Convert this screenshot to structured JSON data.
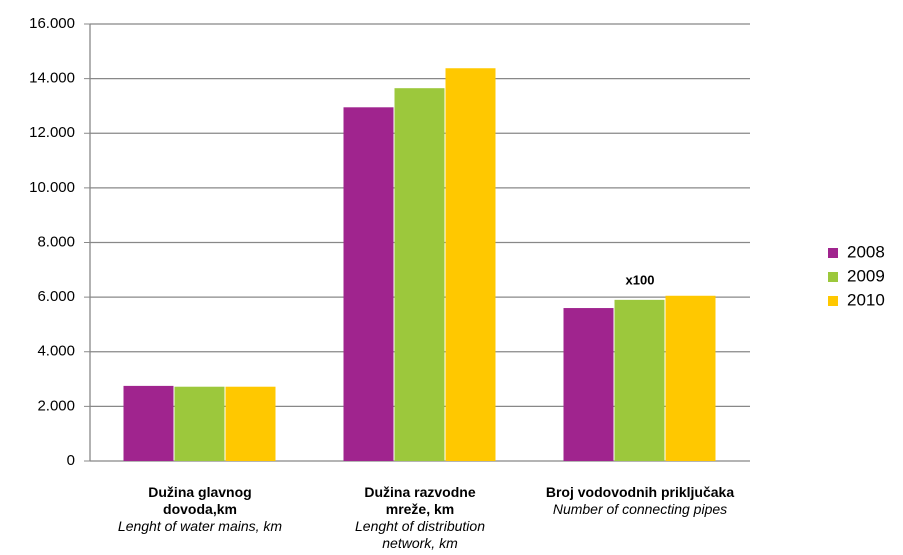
{
  "chart_data": {
    "type": "bar",
    "categories": [
      "Dužina glavnog dovoda,km",
      "Dužina razvodne mreže, km",
      "Broj vodovodnih priključaka"
    ],
    "category_subtitles": [
      "Lenght of water mains, km",
      "Lenght of distribution network, km",
      "Number of connecting pipes"
    ],
    "series": [
      {
        "name": "2008",
        "color": "#a0248e",
        "values": [
          2750,
          12950,
          5600
        ]
      },
      {
        "name": "2009",
        "color": "#9cc83c",
        "values": [
          2720,
          13650,
          5900
        ]
      },
      {
        "name": "2010",
        "color": "#ffc800",
        "values": [
          2720,
          14380,
          6050
        ]
      }
    ],
    "annotations": [
      "x100"
    ],
    "ylim": [
      0,
      16000
    ],
    "yticks": [
      0,
      {
        "value": 2000,
        "label": "2.000"
      },
      {
        "value": 4000,
        "label": "4.000"
      },
      {
        "value": 6000,
        "label": "6.000"
      },
      {
        "value": 8000,
        "label": "8.000"
      },
      {
        "value": 10000,
        "label": "10.000"
      },
      {
        "value": 12000,
        "label": "12.000"
      },
      {
        "value": 14000,
        "label": "14.000"
      },
      {
        "value": 16000,
        "label": "16.000"
      }
    ],
    "grid": true,
    "legend": "right"
  }
}
